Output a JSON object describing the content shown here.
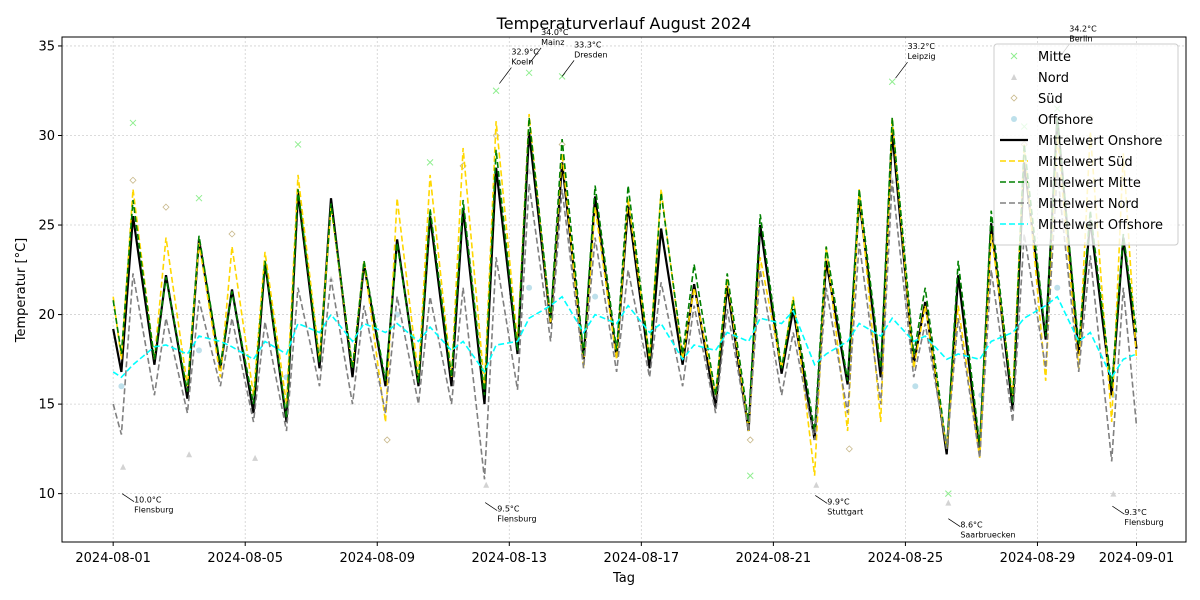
{
  "chart_data": {
    "type": "line",
    "title": "Temperaturverlauf August 2024",
    "x_label": "Tag",
    "y_label": "Temperatur [°C]",
    "xlim": [
      -1.55,
      32.5
    ],
    "ylim": [
      7.3,
      35.5
    ],
    "xticks": [
      {
        "value": 0,
        "label": "2024-08-01"
      },
      {
        "value": 4,
        "label": "2024-08-05"
      },
      {
        "value": 8,
        "label": "2024-08-09"
      },
      {
        "value": 12,
        "label": "2024-08-13"
      },
      {
        "value": 16,
        "label": "2024-08-17"
      },
      {
        "value": 20,
        "label": "2024-08-21"
      },
      {
        "value": 24,
        "label": "2024-08-25"
      },
      {
        "value": 28,
        "label": "2024-08-29"
      },
      {
        "value": 31,
        "label": "2024-09-01"
      }
    ],
    "yticks": [
      10,
      15,
      20,
      25,
      30,
      35
    ],
    "grid": true,
    "legend": "upper right",
    "x": [
      0,
      0.25,
      0.6,
      1.25,
      1.6,
      2.25,
      2.6,
      3.25,
      3.6,
      4.25,
      4.6,
      5.25,
      5.6,
      6.25,
      6.6,
      7.25,
      7.6,
      8.25,
      8.6,
      9.25,
      9.6,
      10.25,
      10.6,
      11.25,
      11.6,
      12.25,
      12.6,
      13.25,
      13.6,
      14.25,
      14.6,
      15.25,
      15.6,
      16.25,
      16.6,
      17.25,
      17.6,
      18.25,
      18.6,
      19.25,
      19.6,
      20.25,
      20.6,
      21.25,
      21.6,
      22.25,
      22.6,
      23.25,
      23.6,
      24.25,
      24.6,
      25.25,
      25.6,
      26.25,
      26.6,
      27.25,
      27.6,
      28.25,
      28.6,
      29.25,
      29.6,
      30.25,
      30.6,
      31
    ],
    "series": [
      {
        "name": "Mitte",
        "marker": "x",
        "color": "#90ee90",
        "x": [
          0.6,
          2.6,
          5.6,
          9.6,
          11.6,
          12.6,
          13.6,
          22.6,
          23.6,
          27.6,
          28.6,
          19.3,
          25.3
        ],
        "values": [
          30.7,
          26.5,
          29.5,
          28.5,
          32.5,
          33.5,
          33.3,
          25.5,
          33.0,
          30.5,
          31.5,
          11.0,
          10.0
        ]
      },
      {
        "name": "Nord",
        "marker": "^",
        "color": "#c8c8c8",
        "x": [
          0.3,
          2.3,
          4.3,
          11.3,
          12.6,
          21.3,
          25.3,
          30.3,
          6.6,
          23.6
        ],
        "values": [
          11.5,
          12.2,
          12.0,
          10.5,
          28.0,
          10.5,
          9.5,
          10.0,
          22.0,
          27.5
        ]
      },
      {
        "name": "Süd",
        "marker": "D",
        "color": "#c8b88a",
        "x": [
          0.6,
          1.6,
          3.6,
          8.3,
          10.6,
          11.6,
          13.6,
          19.3,
          22.3,
          27.6,
          29.6
        ],
        "values": [
          27.5,
          26.0,
          24.5,
          13.0,
          28.3,
          30.0,
          29.5,
          13.0,
          12.5,
          29.5,
          31.0
        ]
      },
      {
        "name": "Offshore",
        "marker": "o",
        "color": "#add8e6",
        "x": [
          0.25,
          2.6,
          5.25,
          8.6,
          12.6,
          14.6,
          20.6,
          24.3,
          26.3,
          28.6,
          30.3
        ],
        "values": [
          16.0,
          18.0,
          16.5,
          20.0,
          21.5,
          21.0,
          20.0,
          16.0,
          15.5,
          21.5,
          15.5
        ]
      },
      {
        "name": "Mittelwert Onshore",
        "line": "solid",
        "color": "#000000",
        "values": [
          19.2,
          16.8,
          25.5,
          17.2,
          22.2,
          15.3,
          24.2,
          17.0,
          21.4,
          14.5,
          22.9,
          14.0,
          26.8,
          17.0,
          26.5,
          16.5,
          22.8,
          16.0,
          24.2,
          16.0,
          25.5,
          16.0,
          25.9,
          15.0,
          28.2,
          17.8,
          30.2,
          19.5,
          28.5,
          17.5,
          26.6,
          17.6,
          26.1,
          17.0,
          24.8,
          17.2,
          21.7,
          14.8,
          21.6,
          13.5,
          25.0,
          16.7,
          20.3,
          13.0,
          23.0,
          16.1,
          26.5,
          16.5,
          30.2,
          17.2,
          20.7,
          12.2,
          22.2,
          12.3,
          25.1,
          14.7,
          28.5,
          18.6,
          31.0,
          17.8,
          25.3,
          15.5,
          24.3,
          18.1
        ]
      },
      {
        "name": "Mittelwert Süd",
        "line": "dashed",
        "color": "#ffd700",
        "values": [
          21.0,
          17.5,
          27.0,
          17.5,
          24.3,
          16.0,
          24.0,
          16.5,
          23.8,
          15.5,
          23.5,
          15.0,
          27.8,
          17.5,
          26.0,
          17.0,
          23.0,
          14.0,
          26.5,
          16.5,
          27.8,
          16.5,
          29.3,
          16.0,
          30.8,
          18.5,
          31.2,
          19.5,
          29.0,
          17.0,
          26.0,
          17.5,
          26.5,
          17.5,
          27.0,
          17.5,
          21.5,
          15.5,
          22.0,
          13.5,
          23.2,
          17.0,
          21.0,
          11.0,
          23.8,
          13.5,
          27.0,
          14.0,
          31.0,
          17.0,
          20.5,
          12.5,
          20.5,
          12.0,
          24.5,
          15.5,
          29.5,
          16.3,
          30.0,
          17.0,
          30.2,
          14.0,
          29.0,
          17.5
        ]
      },
      {
        "name": "Mittelwert Mitte",
        "line": "dashed",
        "color": "#008000",
        "values": [
          20.8,
          17.8,
          26.4,
          17.5,
          22.1,
          15.7,
          24.4,
          17.2,
          21.3,
          15.0,
          23.0,
          14.2,
          27.0,
          17.3,
          26.2,
          17.0,
          23.0,
          16.3,
          24.0,
          16.2,
          25.9,
          16.5,
          26.4,
          15.5,
          29.2,
          18.0,
          31.0,
          19.8,
          29.8,
          17.8,
          27.2,
          18.0,
          27.2,
          17.5,
          26.8,
          17.8,
          22.8,
          15.5,
          22.3,
          14.0,
          25.6,
          17.0,
          20.8,
          13.5,
          23.8,
          16.3,
          27.0,
          17.0,
          31.0,
          17.8,
          21.5,
          12.5,
          23.0,
          12.7,
          25.8,
          15.0,
          29.5,
          18.8,
          31.0,
          18.3,
          25.8,
          16.0,
          24.5,
          19.0
        ]
      },
      {
        "name": "Mittelwert Nord",
        "line": "dashed",
        "color": "#808080",
        "values": [
          15.0,
          13.3,
          22.3,
          15.5,
          19.8,
          14.5,
          20.8,
          16.0,
          19.8,
          14.0,
          19.6,
          13.5,
          21.5,
          16.0,
          22.0,
          15.0,
          20.5,
          14.5,
          21.0,
          15.0,
          21.0,
          15.0,
          21.5,
          10.8,
          23.2,
          15.8,
          27.3,
          18.5,
          27.0,
          17.0,
          24.3,
          16.8,
          22.5,
          16.5,
          21.8,
          16.0,
          20.5,
          14.5,
          20.3,
          13.5,
          22.5,
          15.5,
          19.0,
          13.0,
          21.5,
          14.5,
          24.0,
          15.0,
          27.5,
          16.5,
          19.5,
          12.5,
          19.8,
          12.0,
          22.5,
          14.0,
          24.5,
          17.0,
          28.0,
          16.8,
          23.3,
          11.8,
          21.5,
          13.8
        ]
      },
      {
        "name": "Mittelwert Offshore",
        "line": "dashed",
        "color": "#00ffff",
        "values": [
          16.8,
          16.5,
          17.2,
          18.2,
          18.3,
          17.8,
          18.8,
          18.5,
          18.2,
          17.5,
          18.5,
          17.8,
          19.5,
          19.0,
          20.0,
          18.5,
          19.5,
          19.0,
          19.5,
          18.5,
          19.3,
          18.0,
          18.5,
          16.8,
          18.3,
          18.5,
          19.8,
          20.5,
          21.0,
          19.0,
          20.0,
          19.5,
          20.5,
          19.0,
          19.5,
          17.5,
          18.3,
          18.0,
          19.0,
          18.5,
          19.8,
          19.5,
          20.2,
          17.2,
          17.8,
          18.5,
          19.5,
          18.8,
          19.8,
          18.5,
          18.8,
          17.5,
          17.8,
          17.5,
          18.5,
          19.0,
          19.8,
          20.5,
          21.0,
          18.5,
          19.0,
          16.5,
          17.5,
          17.8
        ]
      }
    ],
    "annotations": [
      {
        "label": "10.0°C",
        "station": "Flensburg",
        "x": 0.27,
        "y": 10.0
      },
      {
        "label": "9.5°C",
        "station": "Flensburg",
        "x": 11.27,
        "y": 9.5
      },
      {
        "label": "32.9°C",
        "station": "Koeln",
        "x": 11.7,
        "y": 32.9
      },
      {
        "label": "34.0°C",
        "station": "Mainz",
        "x": 12.6,
        "y": 34.0
      },
      {
        "label": "33.3°C",
        "station": "Dresden",
        "x": 13.6,
        "y": 33.3
      },
      {
        "label": "9.9°C",
        "station": "Stuttgart",
        "x": 21.27,
        "y": 9.9
      },
      {
        "label": "33.2°C",
        "station": "Leipzig",
        "x": 23.7,
        "y": 33.2
      },
      {
        "label": "8.6°C",
        "station": "Saarbruecken",
        "x": 25.3,
        "y": 8.6
      },
      {
        "label": "34.2°C",
        "station": "Berlin",
        "x": 28.6,
        "y": 34.2
      },
      {
        "label": "9.3°C",
        "station": "Flensburg",
        "x": 30.27,
        "y": 9.3
      }
    ]
  }
}
